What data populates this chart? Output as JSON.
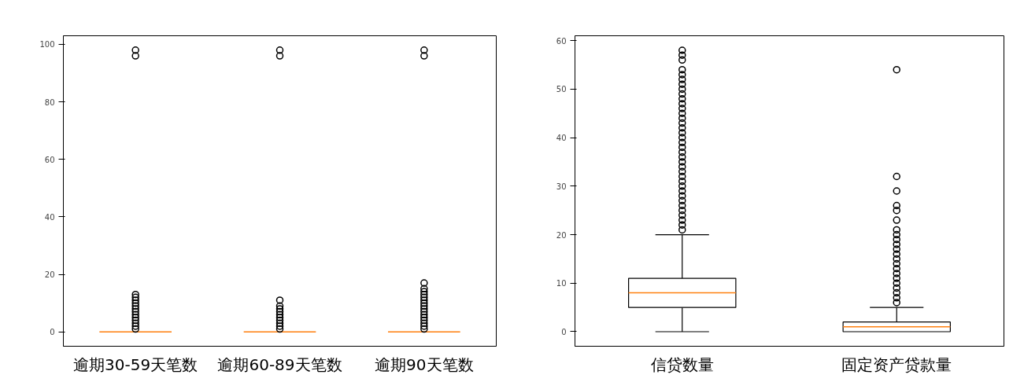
{
  "chart_data": [
    {
      "type": "box",
      "categories": [
        "逾期30-59天笔数",
        "逾期60-89天笔数",
        "逾期90天笔数"
      ],
      "boxes": [
        {
          "low": 0,
          "q1": 0,
          "median": 0,
          "q3": 0,
          "high": 0,
          "outliers": [
            1,
            2,
            3,
            4,
            5,
            6,
            7,
            8,
            9,
            10,
            11,
            12,
            13,
            96,
            98
          ]
        },
        {
          "low": 0,
          "q1": 0,
          "median": 0,
          "q3": 0,
          "high": 0,
          "outliers": [
            1,
            2,
            3,
            4,
            5,
            6,
            7,
            8,
            9,
            11,
            96,
            98
          ]
        },
        {
          "low": 0,
          "q1": 0,
          "median": 0,
          "q3": 0,
          "high": 0,
          "outliers": [
            1,
            2,
            3,
            4,
            5,
            6,
            7,
            8,
            9,
            10,
            11,
            12,
            13,
            14,
            15,
            17,
            96,
            98
          ]
        }
      ],
      "ylim": [
        -5,
        103
      ],
      "yticks": [
        0,
        20,
        40,
        60,
        80,
        100
      ],
      "grid": false
    },
    {
      "type": "box",
      "categories": [
        "信贷数量",
        "固定资产贷款量"
      ],
      "boxes": [
        {
          "low": 0,
          "q1": 5,
          "median": 8,
          "q3": 11,
          "high": 20,
          "outliers": [
            21,
            22,
            23,
            24,
            25,
            26,
            27,
            28,
            29,
            30,
            31,
            32,
            33,
            34,
            35,
            36,
            37,
            38,
            39,
            40,
            41,
            42,
            43,
            44,
            45,
            46,
            47,
            48,
            49,
            50,
            51,
            52,
            53,
            54,
            56,
            57,
            58
          ]
        },
        {
          "low": 0,
          "q1": 0,
          "median": 1,
          "q3": 2,
          "high": 5,
          "outliers": [
            6,
            7,
            8,
            9,
            10,
            11,
            12,
            13,
            14,
            15,
            16,
            17,
            18,
            19,
            20,
            21,
            23,
            25,
            26,
            29,
            32,
            54
          ]
        }
      ],
      "ylim": [
        -3,
        61
      ],
      "yticks": [
        0,
        10,
        20,
        30,
        40,
        50,
        60
      ],
      "grid": false
    }
  ]
}
